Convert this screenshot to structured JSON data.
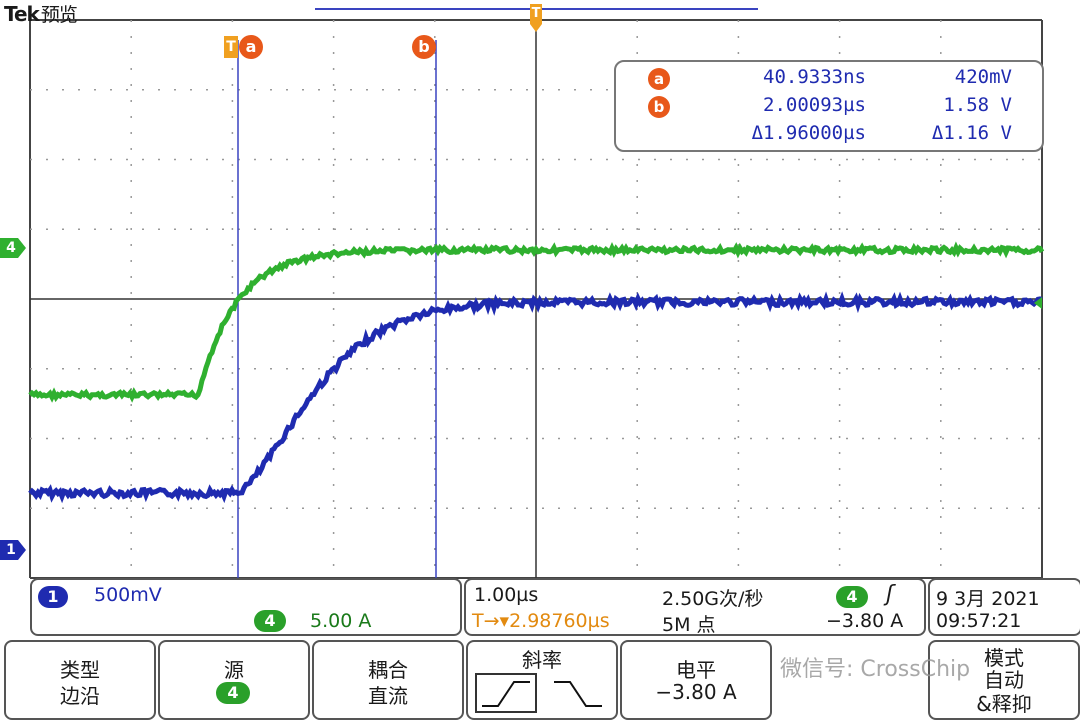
{
  "header": {
    "brand": "Tek",
    "mode": "预览"
  },
  "markers": {
    "trigger_flag": "T",
    "cursor_a": "a",
    "cursor_b": "b",
    "trigger_top": "T"
  },
  "channel_markers": {
    "ch4": "4",
    "ch1": "1"
  },
  "measurements": {
    "a": {
      "label": "a",
      "time": "40.9333ns",
      "value": "420mV"
    },
    "b": {
      "label": "b",
      "time": "2.00093µs",
      "value": "1.58 V"
    },
    "delta": {
      "time": "Δ1.96000µs",
      "value": "Δ1.16 V"
    }
  },
  "status": {
    "ch1_badge": "1",
    "ch1_scale": "500mV",
    "ch4_badge": "4",
    "ch4_scale": "5.00 A",
    "timebase": "1.00µs",
    "sample_rate": "2.50G次/秒",
    "trigger_offset": "T→▾2.98760µs",
    "record_length": "5M 点",
    "trig_source_badge": "4",
    "trig_slope": "ʃ",
    "trig_level": "−3.80 A",
    "date": "9 3月  2021",
    "time": "09:57:21"
  },
  "buttons": {
    "type": {
      "line1": "类型",
      "line2": "边沿"
    },
    "source": {
      "line1": "源",
      "badge": "4"
    },
    "coupling": {
      "line1": "耦合",
      "line2": "直流"
    },
    "slope": {
      "line1": "斜率"
    },
    "level": {
      "line1": "电平",
      "line2": "−3.80 A"
    },
    "mode": {
      "line1": "模式",
      "line2": "自动",
      "line3": "&释抑"
    }
  },
  "watermark": "微信号: CrossChip",
  "colors": {
    "ch1": "#1f2bb0",
    "ch4": "#2fb02f",
    "cursor": "#e8581a",
    "trigger": "#f0a020",
    "grid": "#808080"
  }
}
